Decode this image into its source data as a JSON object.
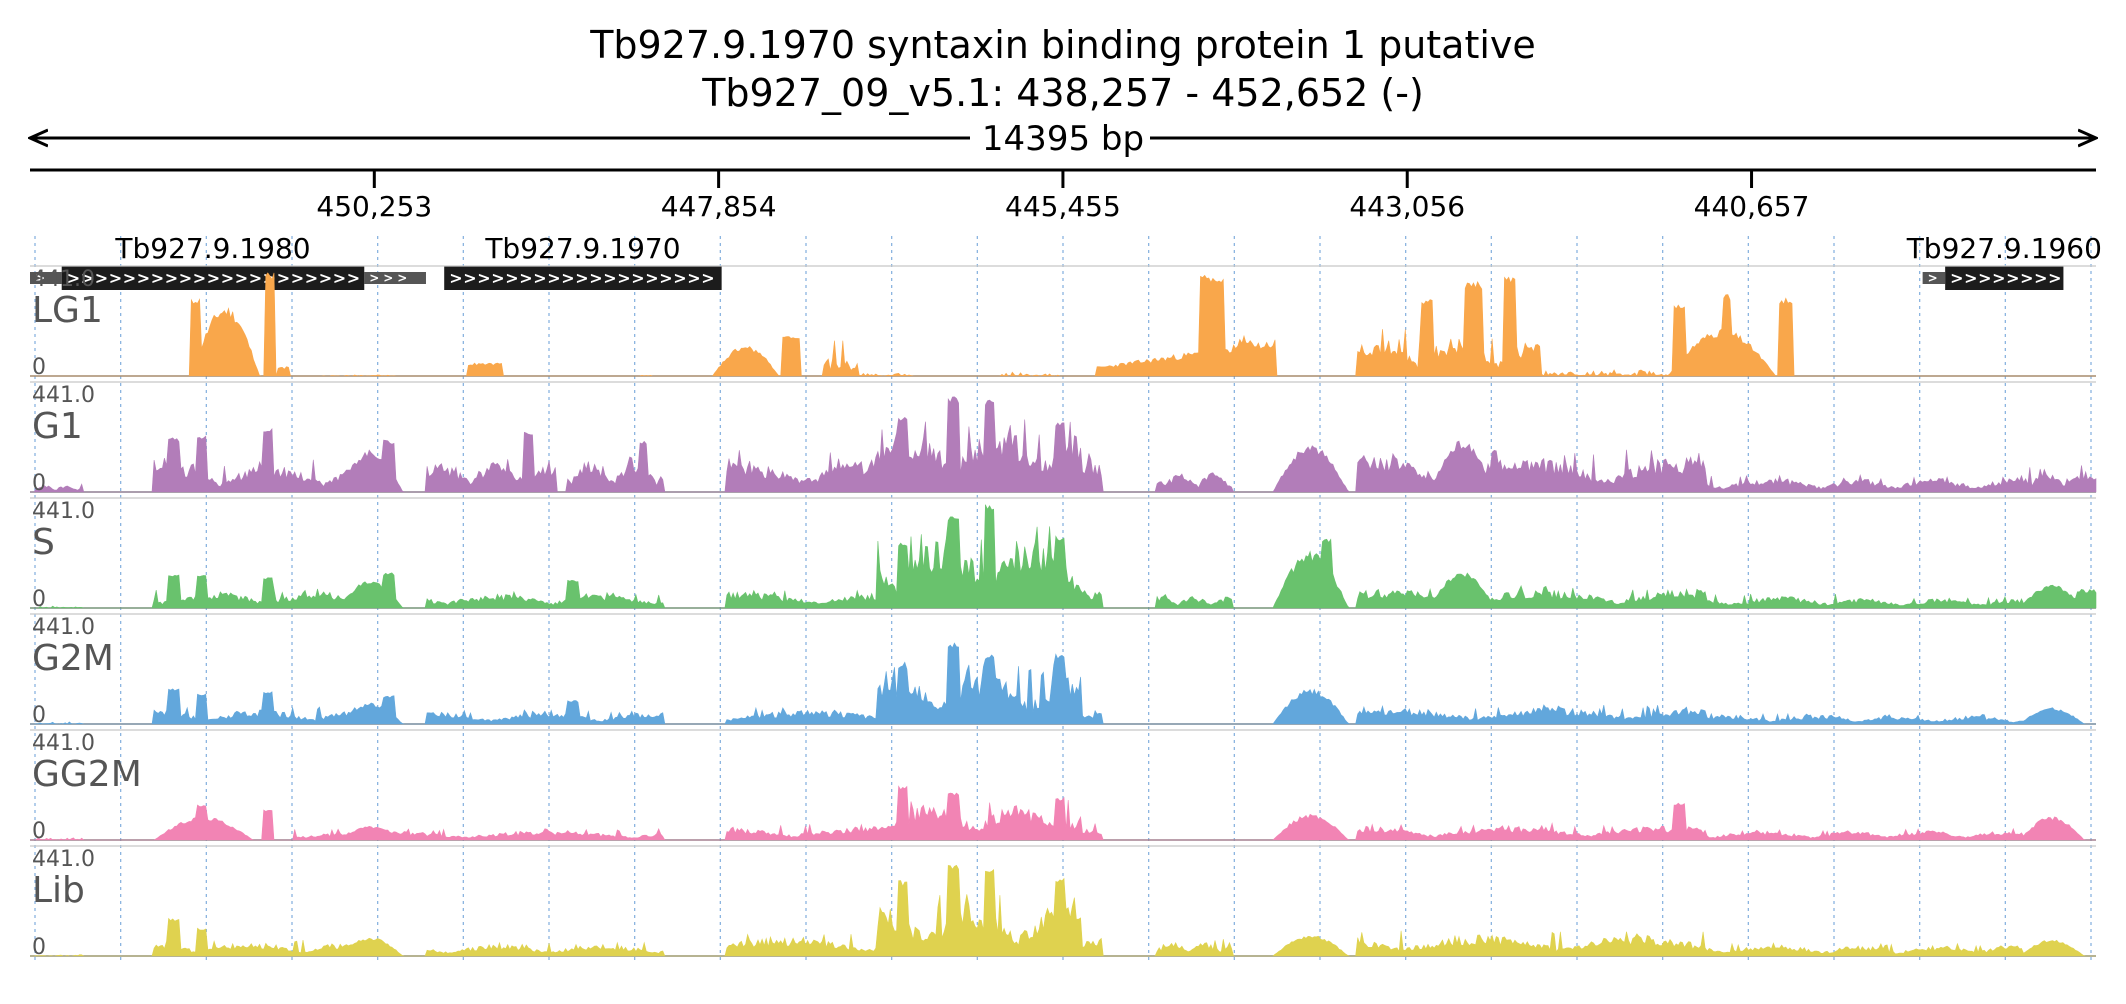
{
  "title": {
    "line1": "Tb927.9.1970  syntaxin binding protein 1  putative",
    "line2": "Tb927_09_v5.1: 438,257 - 452,652 (-)",
    "span_label": "14395 bp"
  },
  "chart_data": {
    "type": "area",
    "region": {
      "chromosome": "Tb927_09_v5.1",
      "start": 438257,
      "end": 452652,
      "strand": "-",
      "length_bp": 14395
    },
    "x_axis": {
      "reversed": true,
      "ticks": [
        "450,253",
        "447,854",
        "445,455",
        "443,056",
        "440,657"
      ],
      "tick_values": [
        450253,
        447854,
        445455,
        443056,
        440657
      ]
    },
    "genes": [
      {
        "name": "Tb927.9.1980",
        "utr5": [
          452652,
          452431
        ],
        "cds": [
          452431,
          450323
        ],
        "utr3": [
          450323,
          449893
        ]
      },
      {
        "name": "Tb927.9.1970",
        "utr5": [],
        "cds": [
          449766,
          447833
        ],
        "utr3": []
      },
      {
        "name": "Tb927.9.1960",
        "utr5": [
          439465,
          439308
        ],
        "cds": [
          439308,
          438484
        ],
        "utr3": []
      }
    ],
    "ylim": [
      0,
      441.0
    ],
    "y_max_label": "441.0",
    "y_min_label": "0",
    "series": [
      {
        "name": "LG1",
        "color": "#f9a74b"
      },
      {
        "name": "G1",
        "color": "#b27db9"
      },
      {
        "name": "S",
        "color": "#69c26d"
      },
      {
        "name": "G2M",
        "color": "#62a7dc"
      },
      {
        "name": "GG2M",
        "color": "#f284b4"
      },
      {
        "name": "Lib",
        "color": "#dfd24f"
      }
    ],
    "profiles": {
      "LG1": [
        {
          "s": 451520,
          "e": 450990,
          "peak": 300,
          "shape": "hill",
          "seed": 11
        },
        {
          "s": 451520,
          "e": 451480,
          "peak": 330,
          "shape": "spike",
          "seed": 12
        },
        {
          "s": 451000,
          "e": 450960,
          "peak": 441,
          "shape": "spike",
          "seed": 13
        },
        {
          "s": 450920,
          "e": 450860,
          "peak": 40,
          "shape": "flat",
          "seed": 14
        },
        {
          "s": 450600,
          "e": 450120,
          "peak": 6,
          "shape": "noise",
          "seed": 15
        },
        {
          "s": 449600,
          "e": 449380,
          "peak": 55,
          "shape": "block",
          "seed": 16
        },
        {
          "s": 448400,
          "e": 448340,
          "peak": 8,
          "shape": "noise",
          "seed": 17
        },
        {
          "s": 447900,
          "e": 447370,
          "peak": 130,
          "shape": "hill",
          "seed": 18
        },
        {
          "s": 447400,
          "e": 447310,
          "peak": 170,
          "shape": "spike",
          "seed": 19
        },
        {
          "s": 447120,
          "e": 446900,
          "peak": 150,
          "shape": "blockpeaks",
          "seed": 20
        },
        {
          "s": 446880,
          "e": 446500,
          "peak": 14,
          "shape": "noise",
          "seed": 21
        },
        {
          "s": 445900,
          "e": 445500,
          "peak": 22,
          "shape": "noise",
          "seed": 22
        },
        {
          "s": 445220,
          "e": 444000,
          "peak": 160,
          "shape": "ramp",
          "seed": 23
        },
        {
          "s": 444500,
          "e": 444360,
          "peak": 430,
          "shape": "spike",
          "seed": 24
        },
        {
          "s": 444360,
          "e": 444000,
          "peak": 170,
          "shape": "hill",
          "seed": 25
        },
        {
          "s": 443400,
          "e": 442150,
          "peak": 170,
          "shape": "rough",
          "seed": 26
        },
        {
          "s": 442950,
          "e": 442900,
          "peak": 330,
          "shape": "spike",
          "seed": 27
        },
        {
          "s": 442650,
          "e": 442560,
          "peak": 400,
          "shape": "spike",
          "seed": 28
        },
        {
          "s": 442380,
          "e": 442330,
          "peak": 420,
          "shape": "spike",
          "seed": 29
        },
        {
          "s": 442150,
          "e": 441250,
          "peak": 30,
          "shape": "noise",
          "seed": 30
        },
        {
          "s": 441250,
          "e": 440400,
          "peak": 200,
          "shape": "hill",
          "seed": 31
        },
        {
          "s": 441200,
          "e": 441150,
          "peak": 310,
          "shape": "spike",
          "seed": 32
        },
        {
          "s": 440860,
          "e": 440820,
          "peak": 350,
          "shape": "spike",
          "seed": 33
        },
        {
          "s": 440460,
          "e": 440400,
          "peak": 330,
          "shape": "spike",
          "seed": 34
        }
      ],
      "G1": [
        {
          "s": 452600,
          "e": 452300,
          "peak": 30,
          "shape": "rough",
          "seed": 41
        },
        {
          "s": 451780,
          "e": 450200,
          "peak": 120,
          "shape": "rough",
          "seed": 42
        },
        {
          "s": 451680,
          "e": 451620,
          "peak": 230,
          "shape": "spike",
          "seed": 43
        },
        {
          "s": 451480,
          "e": 451440,
          "peak": 240,
          "shape": "spike",
          "seed": 44
        },
        {
          "s": 451020,
          "e": 450980,
          "peak": 270,
          "shape": "spike",
          "seed": 45
        },
        {
          "s": 450500,
          "e": 450000,
          "peak": 180,
          "shape": "hill",
          "seed": 46
        },
        {
          "s": 450180,
          "e": 450130,
          "peak": 220,
          "shape": "spike",
          "seed": 47
        },
        {
          "s": 449880,
          "e": 449000,
          "peak": 140,
          "shape": "rough",
          "seed": 48
        },
        {
          "s": 449200,
          "e": 449160,
          "peak": 260,
          "shape": "spike",
          "seed": 49
        },
        {
          "s": 448900,
          "e": 448250,
          "peak": 140,
          "shape": "rough",
          "seed": 50
        },
        {
          "s": 448400,
          "e": 448370,
          "peak": 220,
          "shape": "spike",
          "seed": 51
        },
        {
          "s": 447800,
          "e": 445200,
          "peak": 150,
          "shape": "rough",
          "seed": 52
        },
        {
          "s": 447000,
          "e": 446900,
          "peak": 120,
          "shape": "block",
          "seed": 53
        },
        {
          "s": 446750,
          "e": 445350,
          "peak": 260,
          "shape": "rough",
          "seed": 54
        },
        {
          "s": 446600,
          "e": 446560,
          "peak": 320,
          "shape": "spike",
          "seed": 55
        },
        {
          "s": 446250,
          "e": 446200,
          "peak": 410,
          "shape": "spike",
          "seed": 56
        },
        {
          "s": 446000,
          "e": 445950,
          "peak": 390,
          "shape": "spike",
          "seed": 57
        },
        {
          "s": 445500,
          "e": 445460,
          "peak": 300,
          "shape": "spike",
          "seed": 58
        },
        {
          "s": 444800,
          "e": 444300,
          "peak": 90,
          "shape": "rough",
          "seed": 59
        },
        {
          "s": 444000,
          "e": 443400,
          "peak": 200,
          "shape": "hill",
          "seed": 60
        },
        {
          "s": 443400,
          "e": 441000,
          "peak": 150,
          "shape": "rough",
          "seed": 61
        },
        {
          "s": 442900,
          "e": 442400,
          "peak": 220,
          "shape": "hill",
          "seed": 62
        },
        {
          "s": 441500,
          "e": 440000,
          "peak": 60,
          "shape": "rough",
          "seed": 63
        },
        {
          "s": 440000,
          "e": 438800,
          "peak": 60,
          "shape": "rough",
          "seed": 64
        },
        {
          "s": 438800,
          "e": 438300,
          "peak": 100,
          "shape": "rough",
          "seed": 65
        },
        {
          "s": 438400,
          "e": 438280,
          "peak": 60,
          "shape": "block",
          "seed": 66
        }
      ],
      "S": [
        {
          "s": 452600,
          "e": 452300,
          "peak": 12,
          "shape": "noise",
          "seed": 71
        },
        {
          "s": 451780,
          "e": 450200,
          "peak": 70,
          "shape": "rough",
          "seed": 72
        },
        {
          "s": 451680,
          "e": 451620,
          "peak": 140,
          "shape": "spike",
          "seed": 73
        },
        {
          "s": 451480,
          "e": 451440,
          "peak": 140,
          "shape": "spike",
          "seed": 74
        },
        {
          "s": 451020,
          "e": 450980,
          "peak": 130,
          "shape": "spike",
          "seed": 75
        },
        {
          "s": 450500,
          "e": 450000,
          "peak": 120,
          "shape": "hill",
          "seed": 76
        },
        {
          "s": 450180,
          "e": 450130,
          "peak": 150,
          "shape": "spike",
          "seed": 77
        },
        {
          "s": 449880,
          "e": 448250,
          "peak": 60,
          "shape": "rough",
          "seed": 78
        },
        {
          "s": 448900,
          "e": 448850,
          "peak": 120,
          "shape": "spike",
          "seed": 79
        },
        {
          "s": 447800,
          "e": 445200,
          "peak": 70,
          "shape": "rough",
          "seed": 80
        },
        {
          "s": 446750,
          "e": 445350,
          "peak": 300,
          "shape": "rough",
          "seed": 81
        },
        {
          "s": 446600,
          "e": 446560,
          "peak": 280,
          "shape": "spike",
          "seed": 82
        },
        {
          "s": 446250,
          "e": 446200,
          "peak": 400,
          "shape": "spike",
          "seed": 83
        },
        {
          "s": 446000,
          "e": 445950,
          "peak": 441,
          "shape": "spike",
          "seed": 84
        },
        {
          "s": 445500,
          "e": 445460,
          "peak": 310,
          "shape": "spike",
          "seed": 85
        },
        {
          "s": 444800,
          "e": 444300,
          "peak": 50,
          "shape": "rough",
          "seed": 86
        },
        {
          "s": 444000,
          "e": 443400,
          "peak": 240,
          "shape": "hill",
          "seed": 87
        },
        {
          "s": 443650,
          "e": 443600,
          "peak": 300,
          "shape": "spike",
          "seed": 88
        },
        {
          "s": 443400,
          "e": 441000,
          "peak": 80,
          "shape": "rough",
          "seed": 89
        },
        {
          "s": 442900,
          "e": 442400,
          "peak": 160,
          "shape": "hill",
          "seed": 90
        },
        {
          "s": 441500,
          "e": 440000,
          "peak": 50,
          "shape": "rough",
          "seed": 91
        },
        {
          "s": 440000,
          "e": 438800,
          "peak": 40,
          "shape": "rough",
          "seed": 92
        },
        {
          "s": 438800,
          "e": 438300,
          "peak": 100,
          "shape": "hill",
          "seed": 93
        },
        {
          "s": 438400,
          "e": 438280,
          "peak": 80,
          "shape": "block",
          "seed": 94
        }
      ],
      "G2M": [
        {
          "s": 452600,
          "e": 452300,
          "peak": 12,
          "shape": "noise",
          "seed": 101
        },
        {
          "s": 451780,
          "e": 450200,
          "peak": 60,
          "shape": "rough",
          "seed": 102
        },
        {
          "s": 451680,
          "e": 451620,
          "peak": 150,
          "shape": "spike",
          "seed": 103
        },
        {
          "s": 451480,
          "e": 451440,
          "peak": 130,
          "shape": "spike",
          "seed": 104
        },
        {
          "s": 451020,
          "e": 450980,
          "peak": 140,
          "shape": "spike",
          "seed": 105
        },
        {
          "s": 450500,
          "e": 450000,
          "peak": 90,
          "shape": "hill",
          "seed": 106
        },
        {
          "s": 450180,
          "e": 450130,
          "peak": 120,
          "shape": "spike",
          "seed": 107
        },
        {
          "s": 449880,
          "e": 448250,
          "peak": 50,
          "shape": "rough",
          "seed": 108
        },
        {
          "s": 448900,
          "e": 448850,
          "peak": 100,
          "shape": "spike",
          "seed": 109
        },
        {
          "s": 447800,
          "e": 445200,
          "peak": 60,
          "shape": "rough",
          "seed": 110
        },
        {
          "s": 446750,
          "e": 445350,
          "peak": 220,
          "shape": "rough",
          "seed": 111
        },
        {
          "s": 446600,
          "e": 446560,
          "peak": 250,
          "shape": "spike",
          "seed": 112
        },
        {
          "s": 446250,
          "e": 446200,
          "peak": 350,
          "shape": "spike",
          "seed": 113
        },
        {
          "s": 446000,
          "e": 445950,
          "peak": 300,
          "shape": "spike",
          "seed": 114
        },
        {
          "s": 445500,
          "e": 445460,
          "peak": 300,
          "shape": "spike",
          "seed": 115
        },
        {
          "s": 444000,
          "e": 443400,
          "peak": 150,
          "shape": "hill",
          "seed": 116
        },
        {
          "s": 443400,
          "e": 441000,
          "peak": 70,
          "shape": "rough",
          "seed": 117
        },
        {
          "s": 441500,
          "e": 440000,
          "peak": 40,
          "shape": "rough",
          "seed": 118
        },
        {
          "s": 440000,
          "e": 438800,
          "peak": 35,
          "shape": "rough",
          "seed": 119
        },
        {
          "s": 438800,
          "e": 438300,
          "peak": 70,
          "shape": "hill",
          "seed": 120
        }
      ],
      "GG2M": [
        {
          "s": 452600,
          "e": 452300,
          "peak": 12,
          "shape": "noise",
          "seed": 131
        },
        {
          "s": 451780,
          "e": 451000,
          "peak": 100,
          "shape": "hill",
          "seed": 132
        },
        {
          "s": 451480,
          "e": 451440,
          "peak": 150,
          "shape": "spike",
          "seed": 133
        },
        {
          "s": 451020,
          "e": 450980,
          "peak": 130,
          "shape": "spike",
          "seed": 134
        },
        {
          "s": 450800,
          "e": 448250,
          "peak": 40,
          "shape": "rough",
          "seed": 135
        },
        {
          "s": 450500,
          "e": 450000,
          "peak": 60,
          "shape": "hill",
          "seed": 136
        },
        {
          "s": 447800,
          "e": 445200,
          "peak": 60,
          "shape": "rough",
          "seed": 137
        },
        {
          "s": 446750,
          "e": 445350,
          "peak": 150,
          "shape": "rough",
          "seed": 138
        },
        {
          "s": 446600,
          "e": 446560,
          "peak": 230,
          "shape": "spike",
          "seed": 139
        },
        {
          "s": 446250,
          "e": 446200,
          "peak": 200,
          "shape": "spike",
          "seed": 140
        },
        {
          "s": 445500,
          "e": 445460,
          "peak": 180,
          "shape": "spike",
          "seed": 141
        },
        {
          "s": 444000,
          "e": 443400,
          "peak": 110,
          "shape": "hill",
          "seed": 142
        },
        {
          "s": 443400,
          "e": 441000,
          "peak": 60,
          "shape": "rough",
          "seed": 143
        },
        {
          "s": 441200,
          "e": 441150,
          "peak": 160,
          "shape": "spike",
          "seed": 144
        },
        {
          "s": 441500,
          "e": 440000,
          "peak": 40,
          "shape": "rough",
          "seed": 145
        },
        {
          "s": 440000,
          "e": 438800,
          "peak": 40,
          "shape": "rough",
          "seed": 146
        },
        {
          "s": 438800,
          "e": 438300,
          "peak": 100,
          "shape": "hill",
          "seed": 147
        }
      ],
      "Lib": [
        {
          "s": 452600,
          "e": 452300,
          "peak": 12,
          "shape": "noise",
          "seed": 161
        },
        {
          "s": 451780,
          "e": 450200,
          "peak": 60,
          "shape": "rough",
          "seed": 162
        },
        {
          "s": 451680,
          "e": 451620,
          "peak": 160,
          "shape": "spike",
          "seed": 163
        },
        {
          "s": 451480,
          "e": 451440,
          "peak": 120,
          "shape": "spike",
          "seed": 164
        },
        {
          "s": 450500,
          "e": 450000,
          "peak": 80,
          "shape": "hill",
          "seed": 165
        },
        {
          "s": 449880,
          "e": 448250,
          "peak": 50,
          "shape": "rough",
          "seed": 166
        },
        {
          "s": 447800,
          "e": 445200,
          "peak": 80,
          "shape": "rough",
          "seed": 167
        },
        {
          "s": 446750,
          "e": 445350,
          "peak": 220,
          "shape": "rough",
          "seed": 168
        },
        {
          "s": 446600,
          "e": 446560,
          "peak": 320,
          "shape": "spike",
          "seed": 169
        },
        {
          "s": 446250,
          "e": 446200,
          "peak": 390,
          "shape": "spike",
          "seed": 170
        },
        {
          "s": 446000,
          "e": 445950,
          "peak": 370,
          "shape": "spike",
          "seed": 171
        },
        {
          "s": 445500,
          "e": 445460,
          "peak": 330,
          "shape": "spike",
          "seed": 172
        },
        {
          "s": 444800,
          "e": 444300,
          "peak": 60,
          "shape": "rough",
          "seed": 173
        },
        {
          "s": 444000,
          "e": 443400,
          "peak": 90,
          "shape": "hill",
          "seed": 174
        },
        {
          "s": 443400,
          "e": 441000,
          "peak": 90,
          "shape": "rough",
          "seed": 175
        },
        {
          "s": 441500,
          "e": 440000,
          "peak": 50,
          "shape": "rough",
          "seed": 176
        },
        {
          "s": 440000,
          "e": 438800,
          "peak": 45,
          "shape": "rough",
          "seed": 177
        },
        {
          "s": 438800,
          "e": 438300,
          "peak": 70,
          "shape": "hill",
          "seed": 178
        }
      ]
    }
  }
}
